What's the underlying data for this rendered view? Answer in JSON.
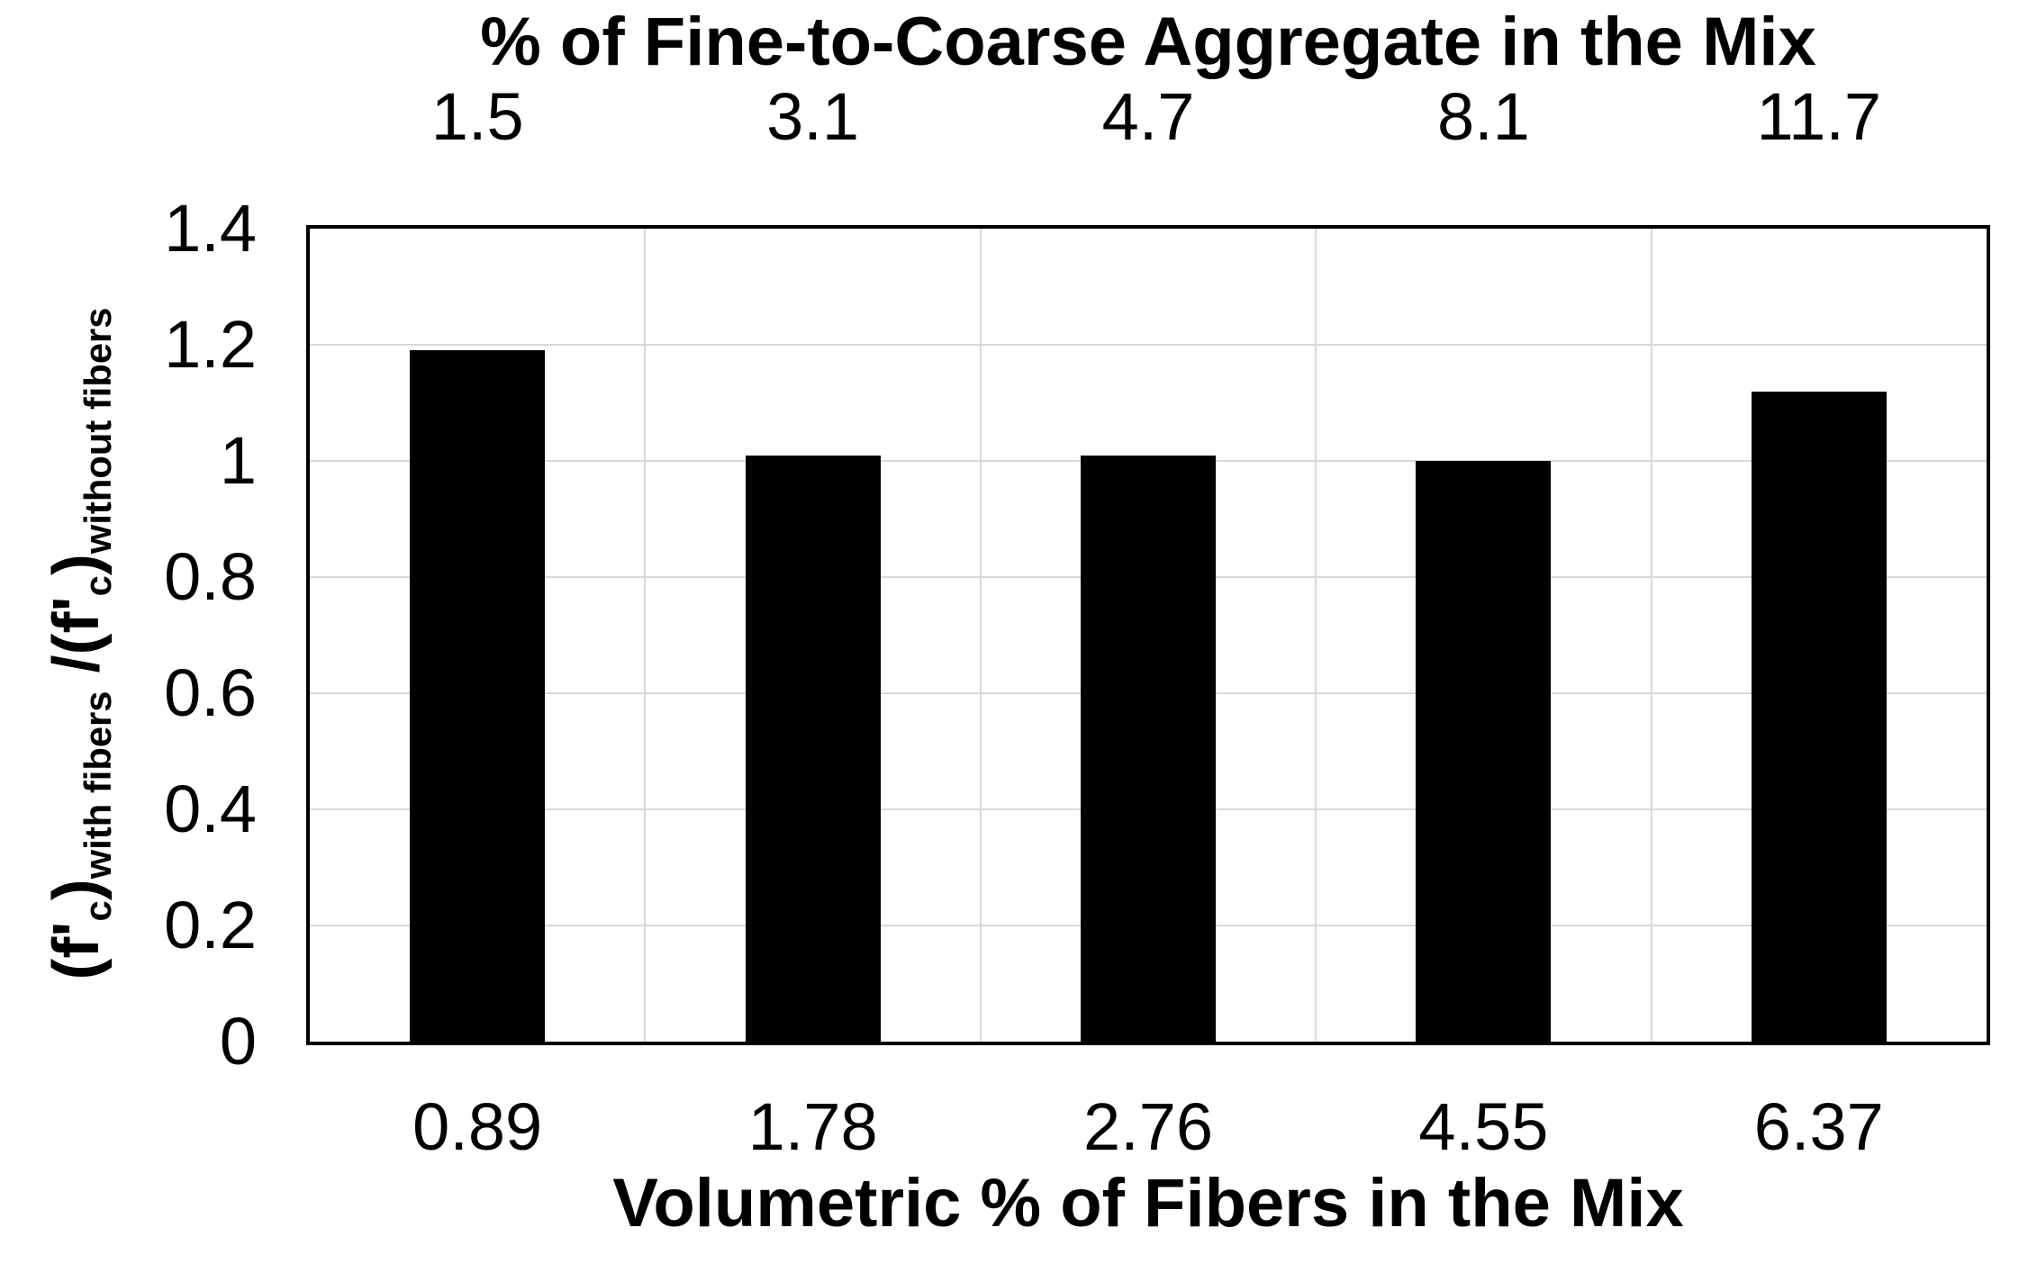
{
  "chart_data": {
    "type": "bar",
    "title": "% of Fine-to-Coarse Aggregate in the Mix",
    "top_axis": {
      "title": "% of Fine-to-Coarse Aggregate in the Mix",
      "tick_labels": [
        "1.5",
        "3.1",
        "4.7",
        "8.1",
        "11.7"
      ]
    },
    "bottom_axis": {
      "title": "Volumetric % of Fibers in the Mix",
      "tick_labels": [
        "0.89",
        "1.78",
        "2.76",
        "4.55",
        "6.37"
      ]
    },
    "y_axis": {
      "label_plain": "(f'c)with fibers /(f'c)without fibers",
      "label_parts": [
        {
          "text": "(f'",
          "sub": false
        },
        {
          "text": "c",
          "sub": true
        },
        {
          "text": ")",
          "sub": false
        },
        {
          "text": "with fibers",
          "sub": true
        },
        {
          "text": " /(f'",
          "sub": false
        },
        {
          "text": "c",
          "sub": true
        },
        {
          "text": ")",
          "sub": false
        },
        {
          "text": "without fibers",
          "sub": true
        }
      ],
      "tick_labels": [
        "0",
        "0.2",
        "0.4",
        "0.6",
        "0.8",
        "1",
        "1.2",
        "1.4"
      ],
      "tick_values": [
        0,
        0.2,
        0.4,
        0.6,
        0.8,
        1.0,
        1.2,
        1.4
      ],
      "ylim": [
        0,
        1.4
      ]
    },
    "categories_top": [
      "1.5",
      "3.1",
      "4.7",
      "8.1",
      "11.7"
    ],
    "categories_bottom": [
      "0.89",
      "1.78",
      "2.76",
      "4.55",
      "6.37"
    ],
    "values": [
      1.19,
      1.01,
      1.01,
      1.0,
      1.12
    ],
    "grid": true,
    "legend": "none",
    "colors": {
      "bar": "#000000",
      "gridline": "#d9d9d9",
      "axis_border": "#000000",
      "text": "#000000",
      "background": "#ffffff"
    }
  }
}
